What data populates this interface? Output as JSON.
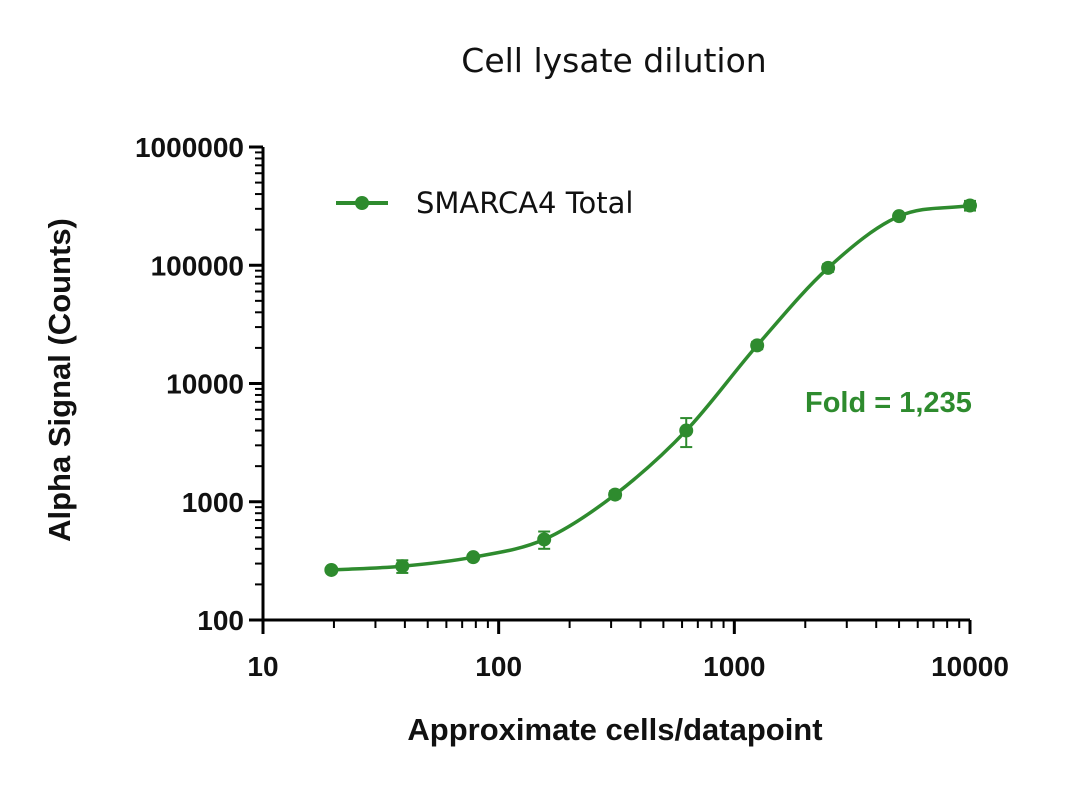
{
  "chart_data": {
    "type": "scatter",
    "title": "Cell lysate dilution",
    "xlabel": "Approximate cells/datapoint",
    "ylabel": "Alpha Signal (Counts)",
    "x_scale": "log",
    "y_scale": "log",
    "xlim": [
      10,
      10000
    ],
    "ylim": [
      100,
      1000000
    ],
    "x_ticks": [
      10,
      100,
      1000,
      10000
    ],
    "x_tick_labels": [
      "10",
      "100",
      "1000",
      "10000"
    ],
    "y_ticks": [
      100,
      1000,
      10000,
      100000,
      1000000
    ],
    "y_tick_labels": [
      "100",
      "1000",
      "10000",
      "100000",
      "1000000"
    ],
    "grid": false,
    "legend_position": "top-left",
    "color": "#2e8b2e",
    "series": [
      {
        "name": "SMARCA4 Total",
        "x": [
          19.5,
          39,
          78,
          156,
          312,
          625,
          1250,
          2500,
          5000,
          10000
        ],
        "y": [
          265,
          285,
          340,
          480,
          1150,
          4000,
          21000,
          95000,
          260000,
          320000
        ],
        "error": [
          15,
          35,
          15,
          80,
          80,
          1100,
          1500,
          7000,
          12000,
          30000
        ],
        "fit": "sigmoidal curve"
      }
    ],
    "annotations": [
      {
        "text": "Fold = 1,235"
      }
    ]
  }
}
